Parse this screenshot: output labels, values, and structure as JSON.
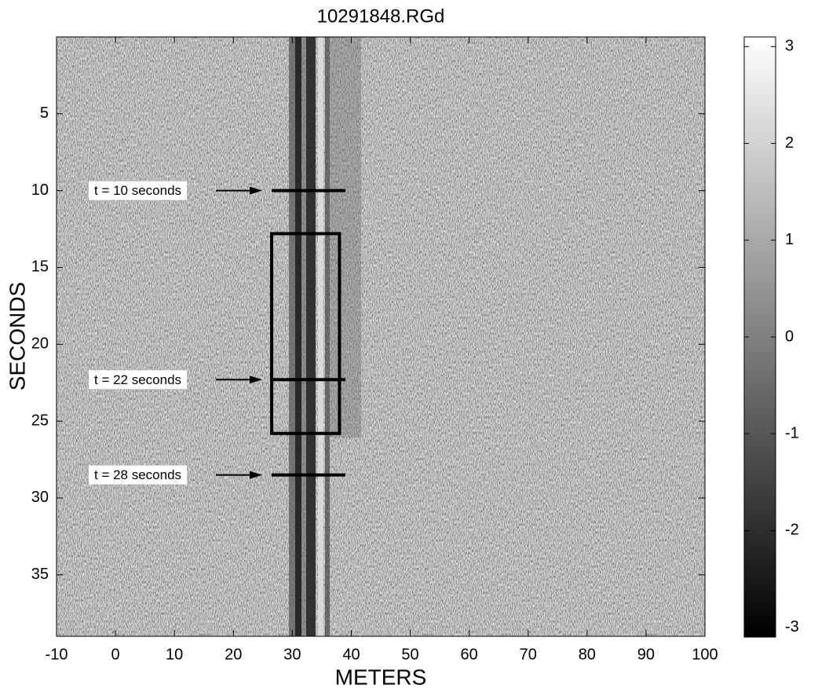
{
  "chart_data": {
    "type": "heatmap",
    "title": "10291848.RGd",
    "xlabel": "METERS",
    "ylabel": "SECONDS",
    "xlim": [
      -10,
      100
    ],
    "xticks": [
      -10,
      0,
      10,
      20,
      30,
      40,
      50,
      60,
      70,
      80,
      90,
      100
    ],
    "ylim": [
      0,
      39
    ],
    "yticks": [
      5,
      10,
      15,
      20,
      25,
      30,
      35
    ],
    "clim": [
      -3.1,
      3.1
    ],
    "cticks": [
      -3,
      -2,
      -1,
      0,
      1,
      2,
      3
    ],
    "colormap": "gray",
    "annotations": [
      {
        "text": "t = 10 seconds",
        "y": 10,
        "x": [
          26.5,
          39
        ]
      },
      {
        "text": "t = 22 seconds",
        "y": 22.3,
        "x": [
          26.5,
          39
        ]
      },
      {
        "text": "t = 28 seconds",
        "y": 28.5,
        "x": [
          26.5,
          39
        ]
      }
    ],
    "box": {
      "x": [
        26.5,
        38
      ],
      "y": [
        12.8,
        25.8
      ]
    }
  }
}
